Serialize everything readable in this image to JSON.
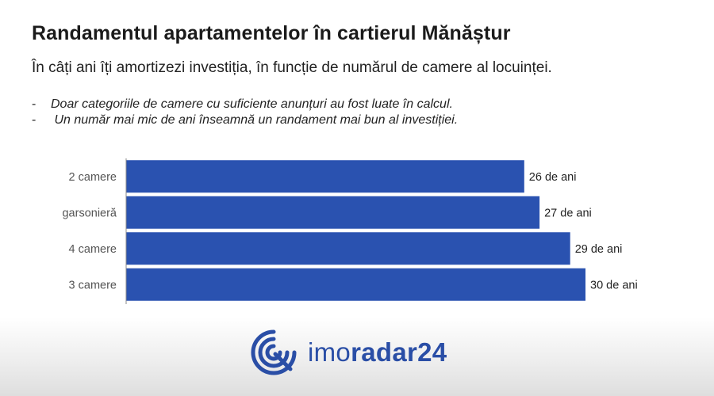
{
  "header": {
    "title": "Randamentul apartamentelor în cartierul Mănăștur",
    "subtitle": "În câți ani îți amortizezi investiția, în funcție de numărul de camere al locuinței.",
    "notes": [
      {
        "dash": "-",
        "text": "Doar categoriile de camere cu suficiente anunțuri au fost luate în calcul."
      },
      {
        "dash": "-",
        "text": " Un număr mai mic de ani înseamnă un randament mai bun al investiției."
      }
    ]
  },
  "chart_data": {
    "type": "bar",
    "orientation": "horizontal",
    "categories": [
      "2 camere",
      "garsonieră",
      "4 camere",
      "3 camere"
    ],
    "values": [
      26,
      27,
      29,
      30
    ],
    "data_labels": [
      "26 de ani",
      "27 de ani",
      "29 de ani",
      "30 de ani"
    ],
    "xlim": [
      0,
      30
    ],
    "grid": false,
    "legend": "none",
    "bar_color": "#2a52b0"
  },
  "footer": {
    "logo": {
      "text_light": "imo",
      "text_bold": "radar24",
      "color": "#2a4ea6"
    }
  }
}
